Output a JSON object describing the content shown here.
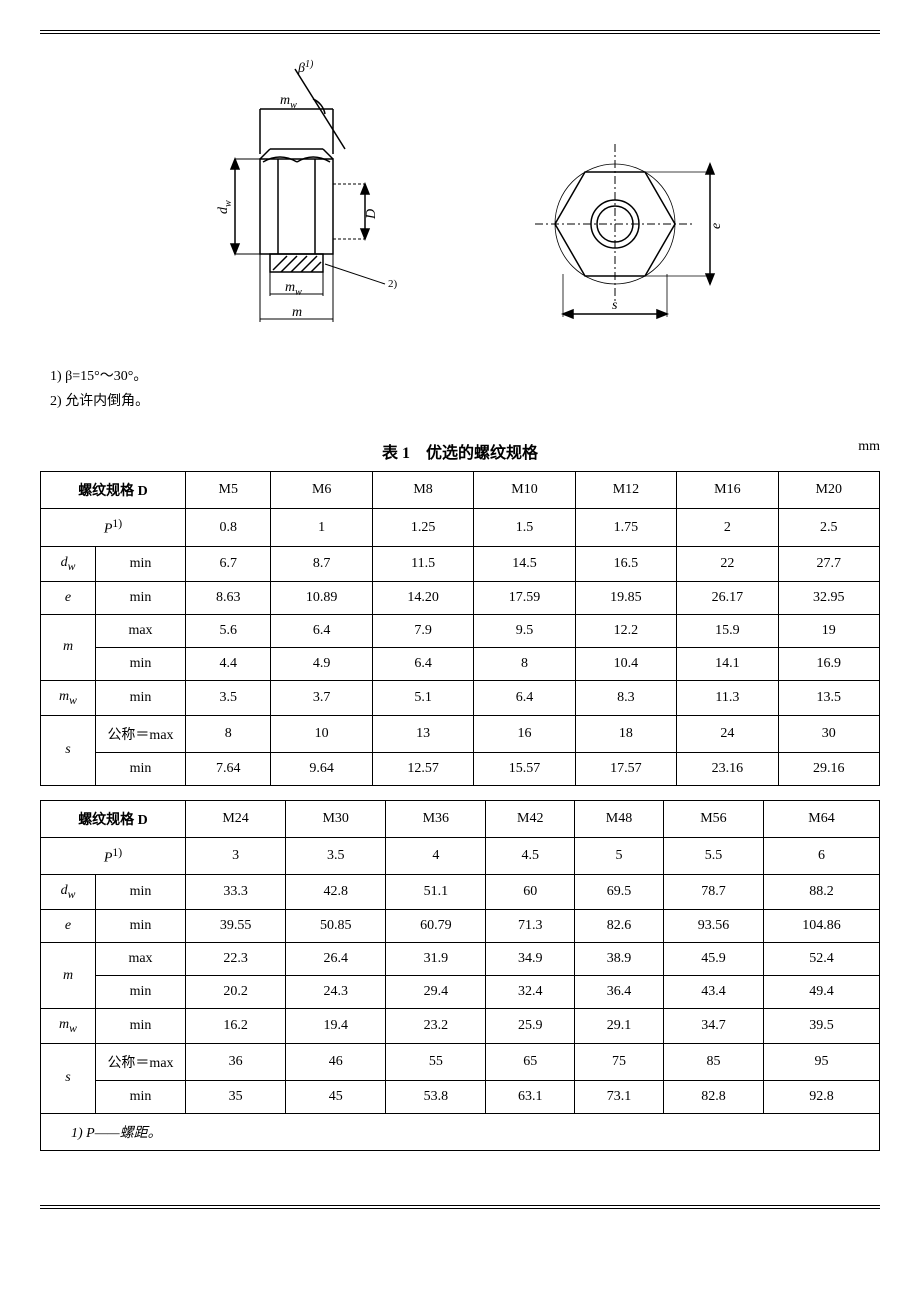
{
  "notes": {
    "n1": "1) β=15°～30°。",
    "n2": "2) 允许内倒角。"
  },
  "table_header": {
    "title": "表 1　优选的螺纹规格",
    "unit": "mm"
  },
  "row_labels": {
    "thread": "螺纹规格 D",
    "P": "P",
    "dw": "d",
    "e": "e",
    "m": "m",
    "mw": "m",
    "s": "s",
    "max": "max",
    "min": "min",
    "nominal_max": "公称＝max"
  },
  "superscripts": {
    "P_sup": "1)",
    "dw_sub": "w",
    "mw_sub": "w"
  },
  "table1": {
    "sizes": [
      "M5",
      "M6",
      "M8",
      "M10",
      "M12",
      "M16",
      "M20"
    ],
    "P": [
      "0.8",
      "1",
      "1.25",
      "1.5",
      "1.75",
      "2",
      "2.5"
    ],
    "dw_min": [
      "6.7",
      "8.7",
      "11.5",
      "14.5",
      "16.5",
      "22",
      "27.7"
    ],
    "e_min": [
      "8.63",
      "10.89",
      "14.20",
      "17.59",
      "19.85",
      "26.17",
      "32.95"
    ],
    "m_max": [
      "5.6",
      "6.4",
      "7.9",
      "9.5",
      "12.2",
      "15.9",
      "19"
    ],
    "m_min": [
      "4.4",
      "4.9",
      "6.4",
      "8",
      "10.4",
      "14.1",
      "16.9"
    ],
    "mw_min": [
      "3.5",
      "3.7",
      "5.1",
      "6.4",
      "8.3",
      "11.3",
      "13.5"
    ],
    "s_max": [
      "8",
      "10",
      "13",
      "16",
      "18",
      "24",
      "30"
    ],
    "s_min": [
      "7.64",
      "9.64",
      "12.57",
      "15.57",
      "17.57",
      "23.16",
      "29.16"
    ]
  },
  "table2": {
    "sizes": [
      "M24",
      "M30",
      "M36",
      "M42",
      "M48",
      "M56",
      "M64"
    ],
    "P": [
      "3",
      "3.5",
      "4",
      "4.5",
      "5",
      "5.5",
      "6"
    ],
    "dw_min": [
      "33.3",
      "42.8",
      "51.1",
      "60",
      "69.5",
      "78.7",
      "88.2"
    ],
    "e_min": [
      "39.55",
      "50.85",
      "60.79",
      "71.3",
      "82.6",
      "93.56",
      "104.86"
    ],
    "m_max": [
      "22.3",
      "26.4",
      "31.9",
      "34.9",
      "38.9",
      "45.9",
      "52.4"
    ],
    "m_min": [
      "20.2",
      "24.3",
      "29.4",
      "32.4",
      "36.4",
      "43.4",
      "49.4"
    ],
    "mw_min": [
      "16.2",
      "19.4",
      "23.2",
      "25.9",
      "29.1",
      "34.7",
      "39.5"
    ],
    "s_max": [
      "36",
      "46",
      "55",
      "65",
      "75",
      "85",
      "95"
    ],
    "s_min": [
      "35",
      "45",
      "53.8",
      "63.1",
      "73.1",
      "82.8",
      "92.8"
    ]
  },
  "footnote": "1) P——螺距。",
  "diagram_labels": {
    "beta": "β",
    "mw": "m",
    "m": "m",
    "dw": "d",
    "D": "D",
    "s": "s",
    "e": "e",
    "sup1": "1)",
    "sup2": "2)",
    "sub_w": "w"
  }
}
